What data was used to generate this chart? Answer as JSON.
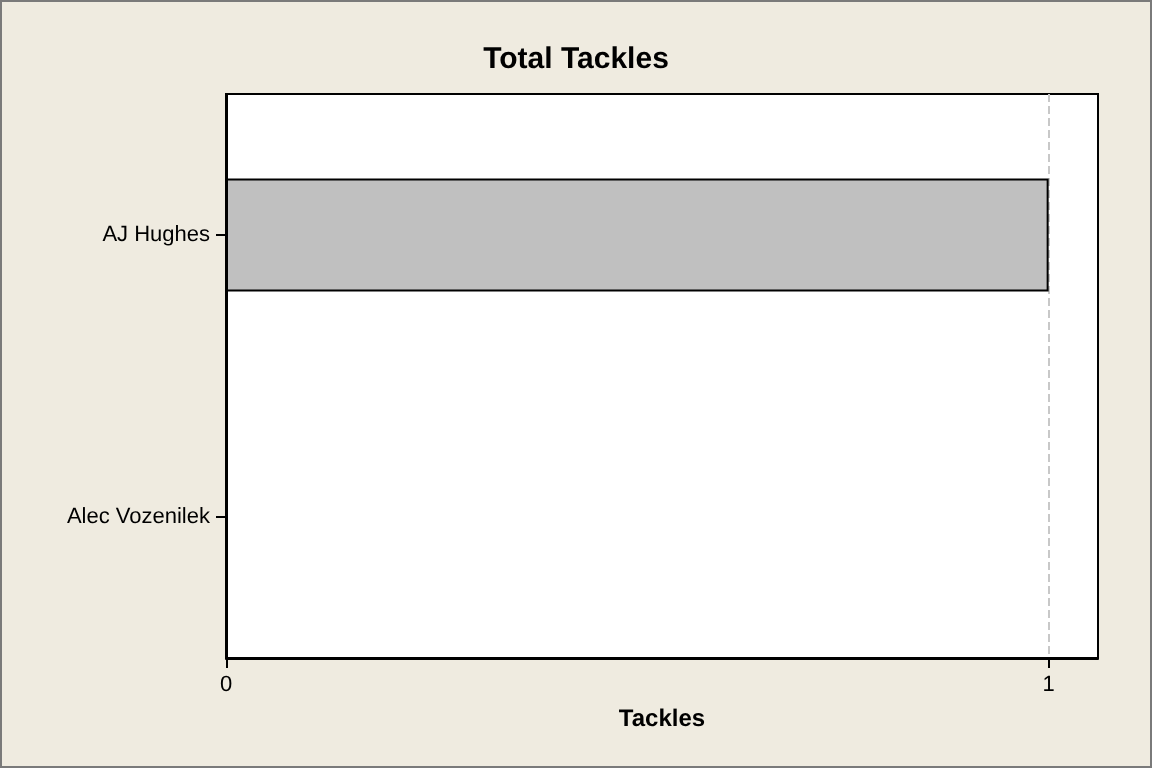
{
  "chart_data": {
    "type": "bar",
    "orientation": "horizontal",
    "title": "Total Tackles",
    "xlabel": "Tackles",
    "categories": [
      "AJ Hughes",
      "Alec Vozenilek"
    ],
    "values": [
      1,
      0
    ],
    "color": "#c0c0c0",
    "xlim": [
      0,
      1.06
    ],
    "xticks": [
      0,
      1
    ],
    "grid": "x"
  }
}
